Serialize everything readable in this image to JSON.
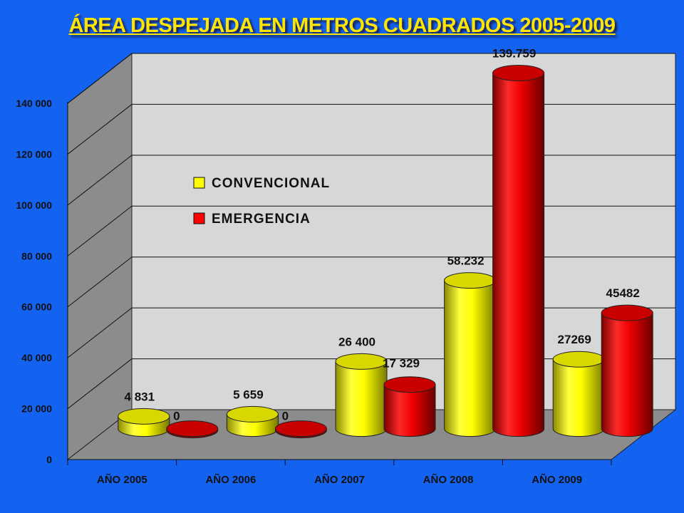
{
  "chart_data": {
    "type": "bar",
    "title": "ÁREA DESPEJADA EN METROS CUADRADOS 2005-2009",
    "categories": [
      "AÑO 2005",
      "AÑO 2006",
      "AÑO 2007",
      "AÑO 2008",
      "AÑO 2009"
    ],
    "ylim": [
      0,
      140000
    ],
    "yticks": [
      "0",
      "20 000",
      "40 000",
      "60 000",
      "80 000",
      "100 000",
      "120 000",
      "140 000"
    ],
    "grid": true,
    "legend_position": "upper-left",
    "series": [
      {
        "name": "CONVENCIONAL",
        "color": "#ffff00",
        "values": [
          4831,
          5659,
          26400,
          58232,
          27269
        ],
        "labels": [
          "4 831",
          "5 659",
          "26 400",
          "58.232",
          "27269"
        ]
      },
      {
        "name": "EMERGENCIA",
        "color": "#ff0000",
        "values": [
          0,
          0,
          17329,
          139759,
          45482
        ],
        "labels": [
          "0",
          "0",
          "17 329",
          "139.759",
          "45482"
        ]
      }
    ]
  }
}
